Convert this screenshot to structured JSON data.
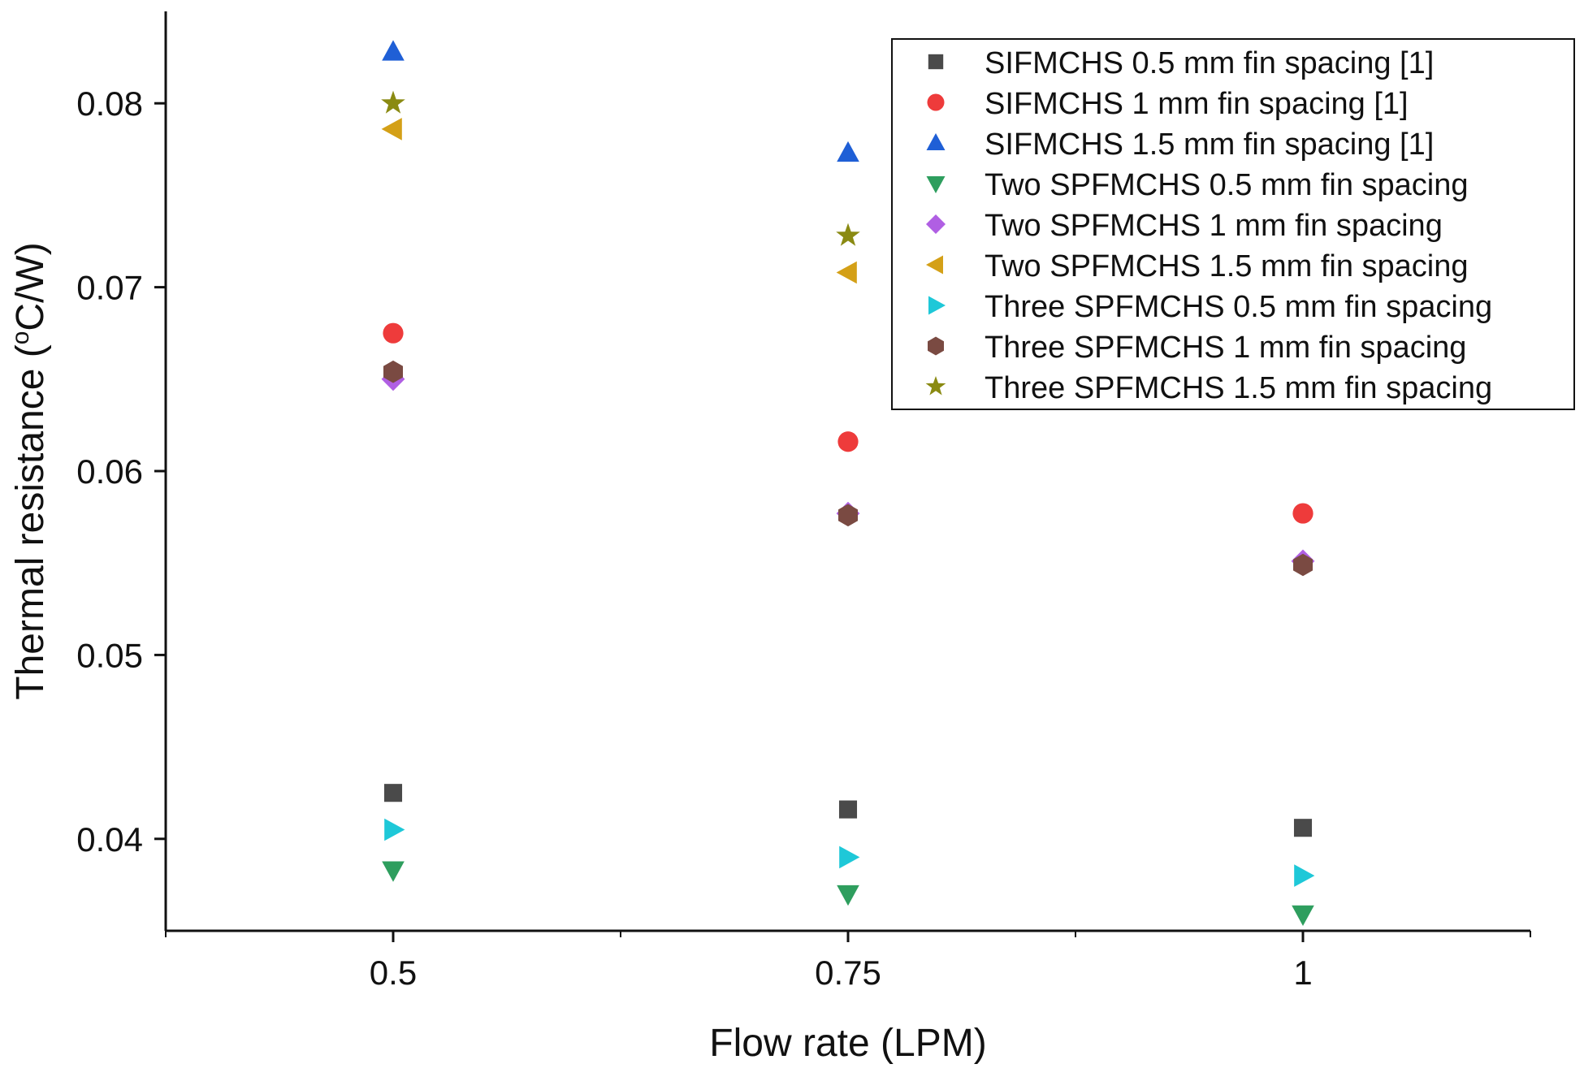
{
  "chart_data": {
    "type": "scatter",
    "title": "",
    "xlabel": "Flow rate (LPM)",
    "ylabel_parts": [
      "Thermal resistance (",
      "o",
      "C/W)"
    ],
    "ylabel": "Thermal resistance (oC/W)",
    "categories": [
      "0.5",
      "0.75",
      "1"
    ],
    "x": [
      0.5,
      0.75,
      1
    ],
    "xlim": [
      0.375,
      1.125
    ],
    "ylim": [
      0.035,
      0.085
    ],
    "yticks": [
      0.04,
      0.05,
      0.06,
      0.07,
      0.08
    ],
    "ytick_labels": [
      "0.04",
      "0.05",
      "0.06",
      "0.07",
      "0.08"
    ],
    "legend_position": "top-right",
    "grid": false,
    "series": [
      {
        "name": "SIFMCHS 0.5 mm fin spacing [1]",
        "marker": "square",
        "color": "#4a4a4a",
        "values": [
          0.0425,
          0.0416,
          0.0406
        ]
      },
      {
        "name": "SIFMCHS 1 mm fin spacing [1]",
        "marker": "circle",
        "color": "#ee3b3b",
        "values": [
          0.0675,
          0.0616,
          0.0577
        ]
      },
      {
        "name": "SIFMCHS 1.5 mm fin spacing [1]",
        "marker": "triangle-up",
        "color": "#1f5fd6",
        "values": [
          0.0828,
          0.0773,
          null
        ]
      },
      {
        "name": "Two SPFMCHS 0.5 mm fin spacing",
        "marker": "triangle-down",
        "color": "#2e9e5e",
        "values": [
          0.0383,
          0.037,
          0.0359
        ]
      },
      {
        "name": "Two SPFMCHS 1 mm fin spacing",
        "marker": "diamond",
        "color": "#b05fe3",
        "values": [
          0.065,
          0.0577,
          0.0551
        ]
      },
      {
        "name": "Two SPFMCHS 1.5 mm fin spacing",
        "marker": "triangle-left",
        "color": "#d4a017",
        "values": [
          0.0786,
          0.0708,
          null
        ]
      },
      {
        "name": "Three SPFMCHS 0.5 mm fin spacing",
        "marker": "triangle-right",
        "color": "#1ec8d8",
        "values": [
          0.0405,
          0.039,
          0.038
        ]
      },
      {
        "name": "Three SPFMCHS 1 mm fin spacing",
        "marker": "hexagon",
        "color": "#7a4a42",
        "values": [
          0.0654,
          0.0576,
          0.0549
        ]
      },
      {
        "name": "Three SPFMCHS 1.5 mm fin spacing",
        "marker": "star",
        "color": "#8a8a12",
        "values": [
          0.08,
          0.0728,
          null
        ]
      }
    ]
  }
}
